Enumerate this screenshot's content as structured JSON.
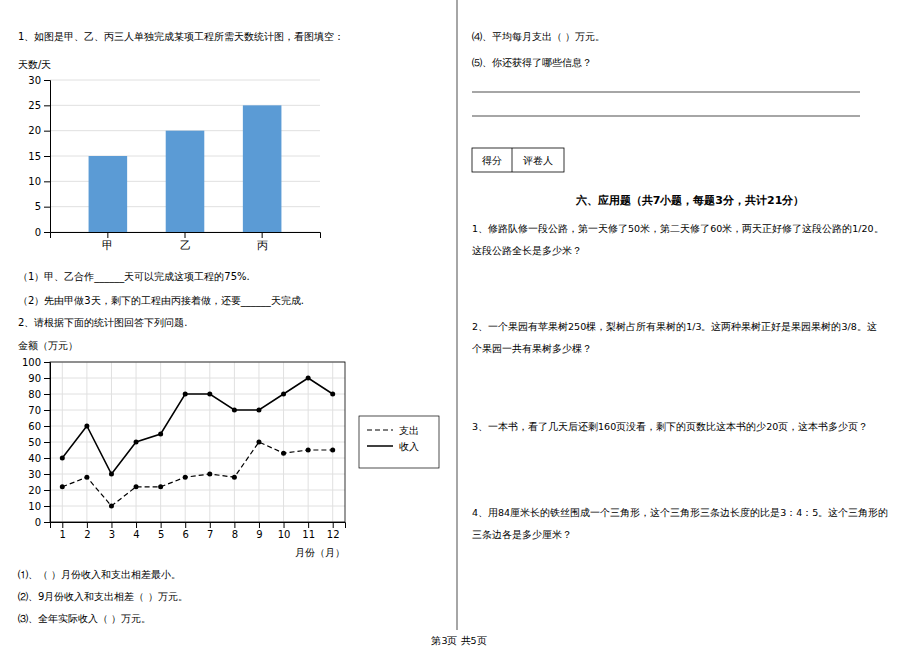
{
  "chart_data": [
    {
      "type": "bar",
      "y_label": "天数/天",
      "categories": [
        "甲",
        "乙",
        "丙"
      ],
      "values": [
        15,
        20,
        25
      ],
      "color": "#5B9BD5",
      "ylim": [
        0,
        30
      ],
      "yticks": [
        0,
        5,
        10,
        15,
        20,
        25,
        30
      ],
      "grid": true,
      "annotations": [
        "1、如图是甲、乙、丙三人单独完成某项工程所需天数统计图，看图填空：",
        "（1）甲、乙合作______天可以完成这项工程的75%.",
        "（2）先由甲做3天，剩下的工程由丙接着做，还要______天完成."
      ]
    },
    {
      "type": "line",
      "y_label": "金额（万元）",
      "x_label": "月份（月）",
      "x": [
        1,
        2,
        3,
        4,
        5,
        6,
        7,
        8,
        9,
        10,
        11,
        12
      ],
      "xlim": [
        0.5,
        12.5
      ],
      "xticks": [
        1,
        2,
        3,
        4,
        5,
        6,
        7,
        8,
        9,
        10,
        11,
        12
      ],
      "ylim": [
        0,
        100
      ],
      "yticks": [
        0,
        10,
        20,
        30,
        40,
        50,
        60,
        70,
        80,
        90,
        100
      ],
      "grid": true,
      "legend": "right",
      "series": [
        {
          "name": "支出",
          "color": "#000000",
          "line_style": "dashed",
          "marker": "circle",
          "values": [
            22,
            28,
            10,
            22,
            22,
            28,
            30,
            28,
            50,
            43,
            45,
            45
          ]
        },
        {
          "name": "收入",
          "color": "#000000",
          "line_style": "solid",
          "marker": "circle",
          "values": [
            40,
            60,
            30,
            50,
            55,
            80,
            80,
            70,
            70,
            80,
            90,
            80
          ]
        }
      ],
      "annotations": [
        "2、请根据下面的统计图回答下列问题.",
        "⑴、（   ）月份收入和支出相差最小。",
        "⑵、9月份收入和支出相差（   ）万元。",
        "⑶、全年实际收入（   ）万元。",
        "⑷、平均每月支出（   ）万元。",
        "⑸、你还获得了哪些信息？",
        "得分",
        "评卷人",
        "六、应用题（共7小题，每题3分，共计21分）",
        "1、修路队修一段公路，第一天修了50米，第二天修了60米，两天正好修了这段公路的1/20。\n这段公路全长是多少米？",
        "2、一个果园有苹果树250棵，梨树占所有果树的1/3。这两种果树正好是果园果树的3/8。这\n个果园一共有果树多少棵？",
        "3、一本书，看了几天后还剩160页没看，剩下的页数比这本书的少20页，这本书多少页？",
        "4、用84厘米长的铁丝围成一个三角形，这个三角形三条边长度的比是3：4：5。这个三角形的\n三条边各是多少厘米？",
        "第3页 共5页"
      ]
    }
  ]
}
